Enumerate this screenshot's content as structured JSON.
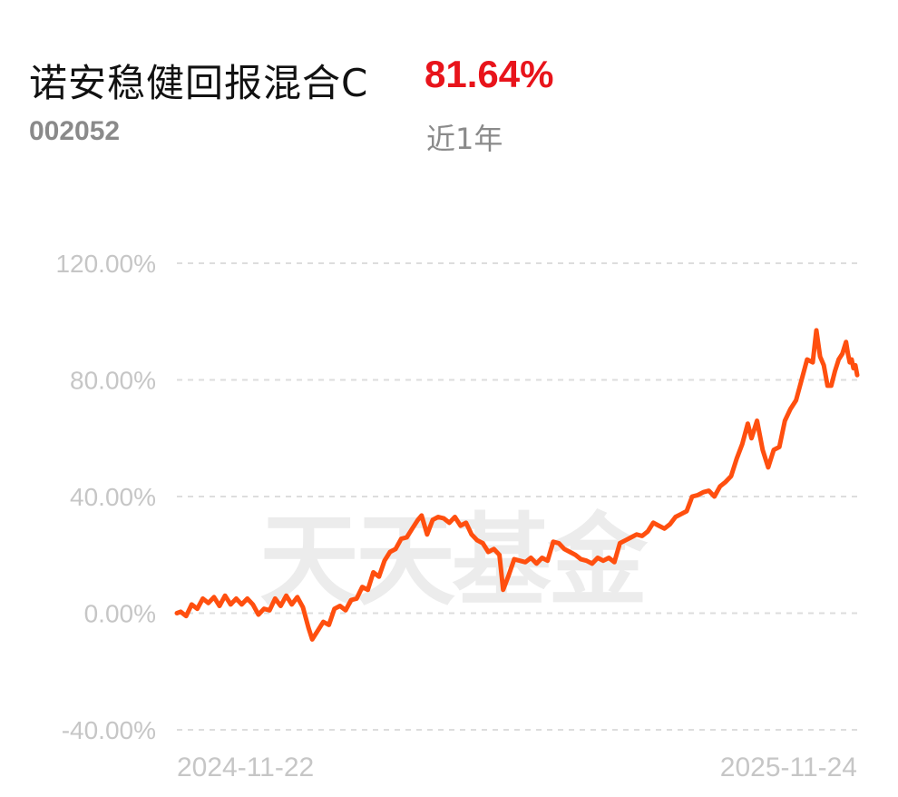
{
  "header": {
    "fund_name": "诺安稳健回报混合C",
    "return_value": "81.64%",
    "fund_code": "002052",
    "period_label": "近1年"
  },
  "watermark": "天天基金",
  "colors": {
    "line": "#ff4f0f",
    "return": "#e8141b",
    "grid": "#dddddd",
    "tick": "#c6c6c6"
  },
  "chart_data": {
    "type": "line",
    "title": "",
    "xlabel": "",
    "ylabel": "",
    "ylim": [
      -40,
      120
    ],
    "xlim": [
      "2024-11-22",
      "2025-11-24"
    ],
    "grid": "horizontal dashed",
    "y_ticks": [
      "120.00%",
      "80.00%",
      "40.00%",
      "0.00%",
      "-40.00%"
    ],
    "y_tick_values": [
      120,
      80,
      40,
      0,
      -40
    ],
    "x_ticks": [
      "2024-11-22",
      "2025-11-24"
    ],
    "series": [
      {
        "values": [
          [
            "2024-11-22",
            0.0
          ],
          [
            "2024-11-24",
            0.5
          ],
          [
            "2024-11-27",
            -1.0
          ],
          [
            "2024-11-30",
            3.0
          ],
          [
            "2024-12-03",
            1.5
          ],
          [
            "2024-12-06",
            5.0
          ],
          [
            "2024-12-09",
            3.5
          ],
          [
            "2024-12-12",
            5.5
          ],
          [
            "2024-12-15",
            2.5
          ],
          [
            "2024-12-18",
            6.0
          ],
          [
            "2024-12-21",
            3.0
          ],
          [
            "2024-12-24",
            5.0
          ],
          [
            "2024-12-27",
            3.0
          ],
          [
            "2024-12-30",
            5.0
          ],
          [
            "2025-01-02",
            3.0
          ],
          [
            "2025-01-05",
            -0.5
          ],
          [
            "2025-01-08",
            1.5
          ],
          [
            "2025-01-11",
            1.0
          ],
          [
            "2025-01-14",
            5.0
          ],
          [
            "2025-01-17",
            2.5
          ],
          [
            "2025-01-20",
            6.0
          ],
          [
            "2025-01-23",
            3.0
          ],
          [
            "2025-01-26",
            5.5
          ],
          [
            "2025-01-29",
            2.0
          ],
          [
            "2025-02-01",
            -5.0
          ],
          [
            "2025-02-03",
            -9.0
          ],
          [
            "2025-02-06",
            -6.0
          ],
          [
            "2025-02-09",
            -3.0
          ],
          [
            "2025-02-12",
            -4.0
          ],
          [
            "2025-02-15",
            1.5
          ],
          [
            "2025-02-18",
            2.5
          ],
          [
            "2025-02-21",
            1.0
          ],
          [
            "2025-02-24",
            4.5
          ],
          [
            "2025-02-27",
            5.0
          ],
          [
            "2025-03-02",
            9.0
          ],
          [
            "2025-03-05",
            8.0
          ],
          [
            "2025-03-08",
            14.0
          ],
          [
            "2025-03-11",
            12.5
          ],
          [
            "2025-03-14",
            18.0
          ],
          [
            "2025-03-17",
            21.0
          ],
          [
            "2025-03-20",
            22.0
          ],
          [
            "2025-03-23",
            25.5
          ],
          [
            "2025-03-26",
            26.0
          ],
          [
            "2025-03-29",
            29.0
          ],
          [
            "2025-04-01",
            32.0
          ],
          [
            "2025-04-03",
            33.5
          ],
          [
            "2025-04-06",
            27.0
          ],
          [
            "2025-04-09",
            32.0
          ],
          [
            "2025-04-12",
            33.0
          ],
          [
            "2025-04-15",
            32.5
          ],
          [
            "2025-04-18",
            31.0
          ],
          [
            "2025-04-21",
            33.0
          ],
          [
            "2025-04-24",
            30.0
          ],
          [
            "2025-04-27",
            31.0
          ],
          [
            "2025-04-30",
            27.0
          ],
          [
            "2025-05-03",
            25.0
          ],
          [
            "2025-05-06",
            24.0
          ],
          [
            "2025-05-09",
            21.0
          ],
          [
            "2025-05-12",
            22.0
          ],
          [
            "2025-05-15",
            20.0
          ],
          [
            "2025-05-17",
            8.0
          ],
          [
            "2025-05-20",
            13.0
          ],
          [
            "2025-05-23",
            18.5
          ],
          [
            "2025-05-26",
            18.0
          ],
          [
            "2025-05-29",
            17.5
          ],
          [
            "2025-06-01",
            19.0
          ],
          [
            "2025-06-04",
            17.0
          ],
          [
            "2025-06-07",
            19.0
          ],
          [
            "2025-06-10",
            18.0
          ],
          [
            "2025-06-13",
            24.5
          ],
          [
            "2025-06-16",
            24.0
          ],
          [
            "2025-06-19",
            22.0
          ],
          [
            "2025-06-22",
            21.0
          ],
          [
            "2025-06-25",
            20.0
          ],
          [
            "2025-06-28",
            18.5
          ],
          [
            "2025-07-01",
            18.0
          ],
          [
            "2025-07-04",
            17.0
          ],
          [
            "2025-07-07",
            19.0
          ],
          [
            "2025-07-10",
            18.0
          ],
          [
            "2025-07-13",
            19.0
          ],
          [
            "2025-07-16",
            17.5
          ],
          [
            "2025-07-19",
            24.0
          ],
          [
            "2025-07-22",
            25.0
          ],
          [
            "2025-07-25",
            26.0
          ],
          [
            "2025-07-28",
            27.0
          ],
          [
            "2025-07-31",
            26.5
          ],
          [
            "2025-08-03",
            28.0
          ],
          [
            "2025-08-06",
            31.0
          ],
          [
            "2025-08-09",
            30.0
          ],
          [
            "2025-08-12",
            29.0
          ],
          [
            "2025-08-15",
            30.5
          ],
          [
            "2025-08-18",
            33.0
          ],
          [
            "2025-08-21",
            34.0
          ],
          [
            "2025-08-24",
            35.0
          ],
          [
            "2025-08-27",
            40.0
          ],
          [
            "2025-08-30",
            40.5
          ],
          [
            "2025-09-02",
            41.5
          ],
          [
            "2025-09-05",
            42.0
          ],
          [
            "2025-09-08",
            40.0
          ],
          [
            "2025-09-11",
            43.5
          ],
          [
            "2025-09-14",
            45.0
          ],
          [
            "2025-09-17",
            47.0
          ],
          [
            "2025-09-20",
            53.0
          ],
          [
            "2025-09-23",
            58.0
          ],
          [
            "2025-09-26",
            65.0
          ],
          [
            "2025-09-28",
            60.0
          ],
          [
            "2025-10-01",
            66.0
          ],
          [
            "2025-10-04",
            56.0
          ],
          [
            "2025-10-07",
            50.0
          ],
          [
            "2025-10-10",
            56.0
          ],
          [
            "2025-10-13",
            57.0
          ],
          [
            "2025-10-16",
            66.0
          ],
          [
            "2025-10-19",
            70.0
          ],
          [
            "2025-10-22",
            73.0
          ],
          [
            "2025-10-25",
            80.0
          ],
          [
            "2025-10-28",
            87.0
          ],
          [
            "2025-10-31",
            86.0
          ],
          [
            "2025-11-02",
            97.0
          ],
          [
            "2025-11-04",
            88.0
          ],
          [
            "2025-11-06",
            85.0
          ],
          [
            "2025-11-08",
            78.0
          ],
          [
            "2025-11-10",
            78.0
          ],
          [
            "2025-11-12",
            83.0
          ],
          [
            "2025-11-14",
            87.0
          ],
          [
            "2025-11-16",
            89.0
          ],
          [
            "2025-11-18",
            93.0
          ],
          [
            "2025-11-19",
            89.0
          ],
          [
            "2025-11-20",
            86.0
          ],
          [
            "2025-11-21",
            87.0
          ],
          [
            "2025-11-22",
            84.0
          ],
          [
            "2025-11-23",
            85.0
          ],
          [
            "2025-11-24",
            81.64
          ]
        ]
      }
    ]
  }
}
